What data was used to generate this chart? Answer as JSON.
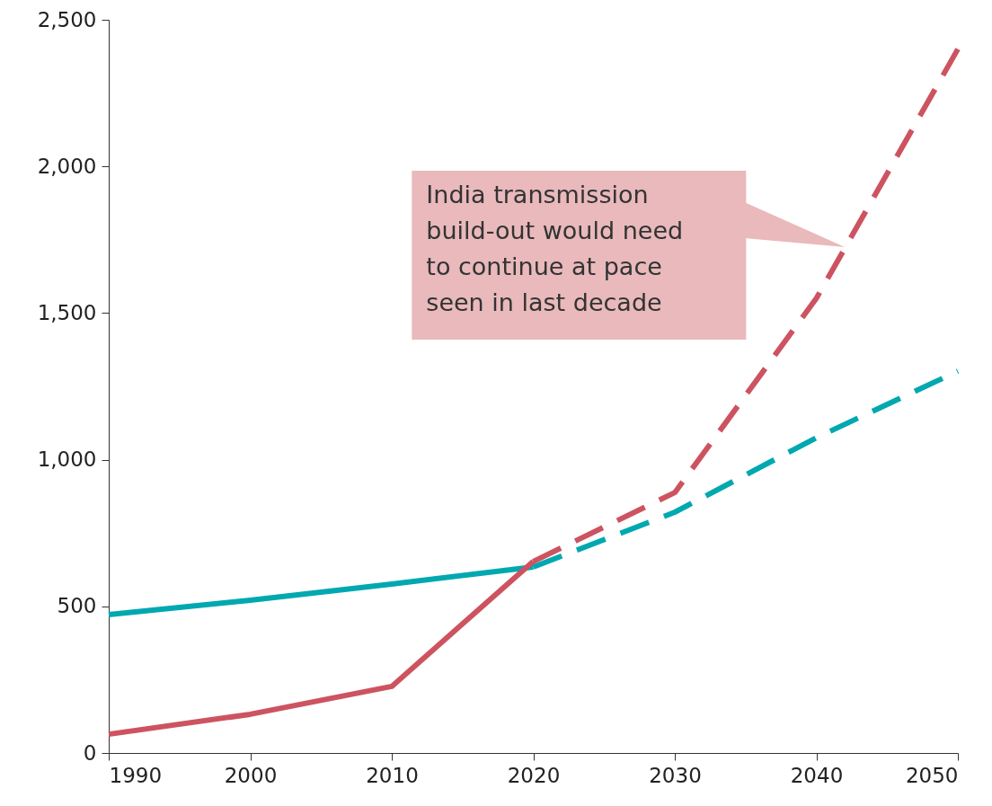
{
  "chart_data": {
    "type": "line",
    "series": [
      {
        "color": "#00a8b0",
        "line_style": "solid",
        "x": [
          1990,
          2000,
          2010,
          2020
        ],
        "values": [
          472,
          521,
          576,
          634
        ]
      },
      {
        "color": "#00a8b0",
        "line_style": "dashed",
        "x": [
          2020,
          2030,
          2040,
          2050
        ],
        "values": [
          634,
          821,
          1075,
          1302
        ]
      },
      {
        "color": "#cd5360",
        "line_style": "solid",
        "x": [
          1990,
          2000,
          2010,
          2020
        ],
        "values": [
          64,
          132,
          227,
          653
        ]
      },
      {
        "color": "#cd5360",
        "line_style": "dashed",
        "x": [
          2020,
          2030,
          2040,
          2050
        ],
        "values": [
          653,
          888,
          1550,
          2400
        ]
      }
    ],
    "xlim": [
      1990,
      2050
    ],
    "xticks": [
      1990,
      2000,
      2010,
      2020,
      2030,
      2040,
      2050
    ],
    "ylim": [
      0,
      2500
    ],
    "yticks": [
      {
        "value": 0,
        "label": "0"
      },
      {
        "value": 500,
        "label": "500"
      },
      {
        "value": 1000,
        "label": "1,000"
      },
      {
        "value": 1500,
        "label": "1,500"
      },
      {
        "value": 2000,
        "label": "2,000"
      },
      {
        "value": 2500,
        "label": "2,500"
      }
    ],
    "grid": false,
    "marker": "none",
    "annotations": [
      "India transmission\nbuild-out would need\nto continue at pace\nseen in last decade"
    ]
  }
}
